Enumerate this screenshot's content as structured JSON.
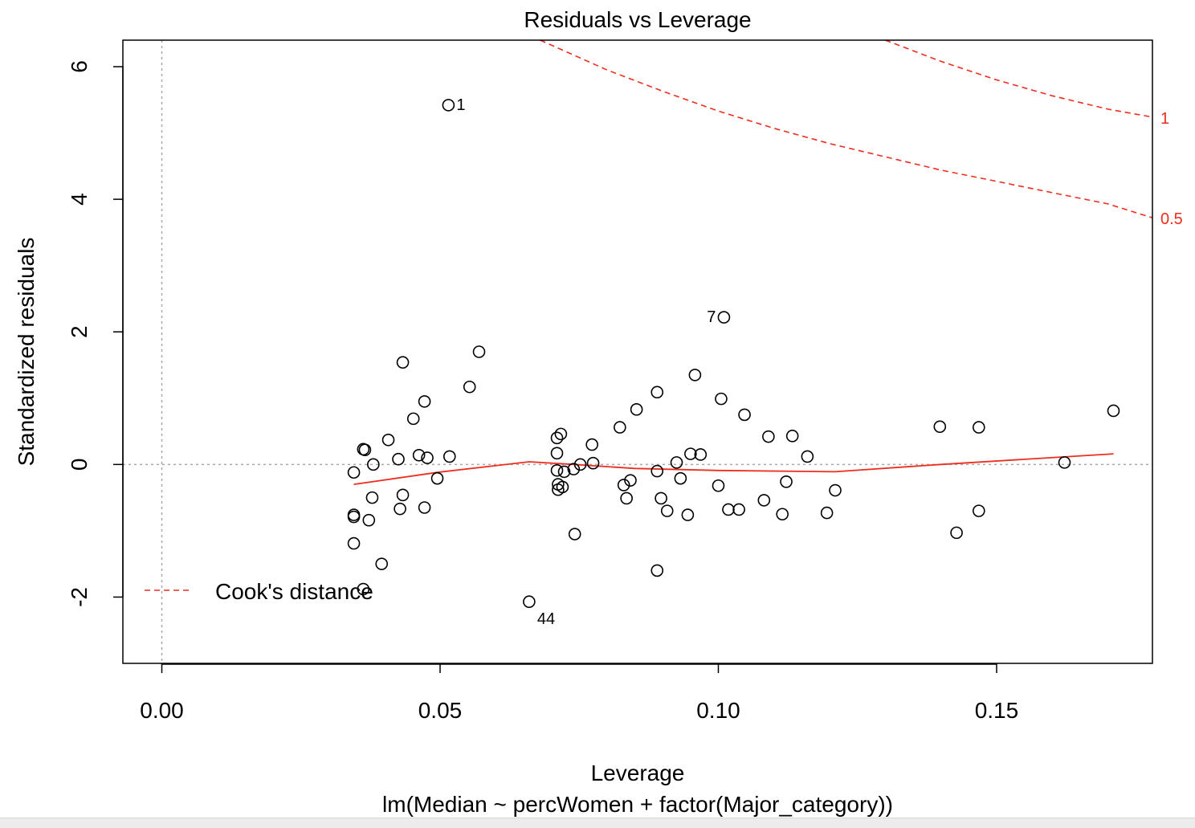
{
  "chart_data": {
    "type": "scatter",
    "title": "Residuals vs Leverage",
    "xlabel": "Leverage",
    "ylabel": "Standardized residuals",
    "subtitle": "lm(Median ~ percWomen + factor(Major_category))",
    "xlim": [
      -0.007,
      0.178
    ],
    "ylim": [
      -3.0,
      6.4
    ],
    "x_ticks": [
      0.0,
      0.05,
      0.1,
      0.15
    ],
    "x_tick_labels": [
      "0.00",
      "0.05",
      "0.10",
      "0.15"
    ],
    "y_ticks": [
      -2,
      0,
      2,
      4,
      6
    ],
    "y_tick_labels": [
      "-2",
      "0",
      "2",
      "4",
      "6"
    ],
    "reference_lines": {
      "x": 0,
      "y": 0,
      "style": "dotted",
      "color": "#a0a0a0"
    },
    "points": [
      {
        "x": 0.0515,
        "y": 5.42,
        "label": "1"
      },
      {
        "x": 0.101,
        "y": 2.22,
        "label": "7"
      },
      {
        "x": 0.066,
        "y": -2.07,
        "label": "44"
      },
      {
        "x": 0.0345,
        "y": -0.12
      },
      {
        "x": 0.0345,
        "y": -0.76
      },
      {
        "x": 0.0345,
        "y": -0.79
      },
      {
        "x": 0.0345,
        "y": -1.19
      },
      {
        "x": 0.0362,
        "y": 0.23
      },
      {
        "x": 0.0365,
        "y": 0.22
      },
      {
        "x": 0.0362,
        "y": -1.88
      },
      {
        "x": 0.0372,
        "y": -0.84
      },
      {
        "x": 0.0378,
        "y": -0.5
      },
      {
        "x": 0.038,
        "y": 0.0
      },
      {
        "x": 0.0395,
        "y": -1.5
      },
      {
        "x": 0.0407,
        "y": 0.37
      },
      {
        "x": 0.0425,
        "y": 0.08
      },
      {
        "x": 0.0428,
        "y": -0.67
      },
      {
        "x": 0.0433,
        "y": 1.54
      },
      {
        "x": 0.0433,
        "y": -0.46
      },
      {
        "x": 0.0452,
        "y": 0.69
      },
      {
        "x": 0.0462,
        "y": 0.14
      },
      {
        "x": 0.0472,
        "y": 0.95
      },
      {
        "x": 0.0472,
        "y": -0.65
      },
      {
        "x": 0.0477,
        "y": 0.1
      },
      {
        "x": 0.0495,
        "y": -0.21
      },
      {
        "x": 0.0517,
        "y": 0.12
      },
      {
        "x": 0.0553,
        "y": 1.17
      },
      {
        "x": 0.057,
        "y": 1.7
      },
      {
        "x": 0.071,
        "y": 0.4
      },
      {
        "x": 0.071,
        "y": 0.17
      },
      {
        "x": 0.071,
        "y": -0.09
      },
      {
        "x": 0.0712,
        "y": -0.3
      },
      {
        "x": 0.0712,
        "y": -0.38
      },
      {
        "x": 0.0717,
        "y": 0.46
      },
      {
        "x": 0.072,
        "y": -0.34
      },
      {
        "x": 0.0723,
        "y": -0.11
      },
      {
        "x": 0.074,
        "y": -0.07
      },
      {
        "x": 0.0742,
        "y": -1.05
      },
      {
        "x": 0.0752,
        "y": 0.0
      },
      {
        "x": 0.0773,
        "y": 0.3
      },
      {
        "x": 0.0775,
        "y": 0.02
      },
      {
        "x": 0.0823,
        "y": 0.56
      },
      {
        "x": 0.083,
        "y": -0.31
      },
      {
        "x": 0.0835,
        "y": -0.51
      },
      {
        "x": 0.0842,
        "y": -0.24
      },
      {
        "x": 0.0853,
        "y": 0.83
      },
      {
        "x": 0.089,
        "y": 1.09
      },
      {
        "x": 0.089,
        "y": -0.1
      },
      {
        "x": 0.089,
        "y": -1.6
      },
      {
        "x": 0.0897,
        "y": -0.51
      },
      {
        "x": 0.0908,
        "y": -0.7
      },
      {
        "x": 0.0925,
        "y": 0.03
      },
      {
        "x": 0.0932,
        "y": -0.21
      },
      {
        "x": 0.0945,
        "y": -0.76
      },
      {
        "x": 0.095,
        "y": 0.16
      },
      {
        "x": 0.0958,
        "y": 1.35
      },
      {
        "x": 0.0968,
        "y": 0.15
      },
      {
        "x": 0.1,
        "y": -0.32
      },
      {
        "x": 0.1005,
        "y": 0.99
      },
      {
        "x": 0.1018,
        "y": -0.68
      },
      {
        "x": 0.1037,
        "y": -0.68
      },
      {
        "x": 0.1047,
        "y": 0.75
      },
      {
        "x": 0.1082,
        "y": -0.54
      },
      {
        "x": 0.109,
        "y": 0.42
      },
      {
        "x": 0.1115,
        "y": -0.75
      },
      {
        "x": 0.1122,
        "y": -0.26
      },
      {
        "x": 0.1133,
        "y": 0.43
      },
      {
        "x": 0.116,
        "y": 0.12
      },
      {
        "x": 0.1195,
        "y": -0.73
      },
      {
        "x": 0.121,
        "y": -0.39
      },
      {
        "x": 0.1398,
        "y": 0.57
      },
      {
        "x": 0.1428,
        "y": -1.03
      },
      {
        "x": 0.1468,
        "y": 0.56
      },
      {
        "x": 0.1468,
        "y": -0.7
      },
      {
        "x": 0.1622,
        "y": 0.03
      },
      {
        "x": 0.171,
        "y": 0.81
      }
    ],
    "smooth_line": {
      "color": "#ee2d1e",
      "x": [
        0.0345,
        0.0495,
        0.066,
        0.074,
        0.085,
        0.1,
        0.121,
        0.14,
        0.171
      ],
      "y": [
        -0.3,
        -0.12,
        0.04,
        0.0,
        -0.06,
        -0.09,
        -0.11,
        0.0,
        0.16
      ]
    },
    "cooks_distance": {
      "color": "#ee2d1e",
      "style": "dashed",
      "contours": [
        {
          "label": "1",
          "x": [
            0.13,
            0.14,
            0.15,
            0.16,
            0.17,
            0.178
          ],
          "y": [
            6.4,
            6.08,
            5.8,
            5.56,
            5.36,
            5.24
          ]
        },
        {
          "label": "0.5",
          "x": [
            0.068,
            0.08,
            0.09,
            0.1,
            0.11,
            0.12,
            0.13,
            0.14,
            0.15,
            0.16,
            0.17,
            0.178
          ],
          "y": [
            6.4,
            5.95,
            5.63,
            5.33,
            5.07,
            4.84,
            4.64,
            4.44,
            4.27,
            4.1,
            3.93,
            3.72
          ]
        }
      ]
    },
    "legend": {
      "position": "bottom-left",
      "entries": [
        "Cook's distance"
      ]
    }
  }
}
